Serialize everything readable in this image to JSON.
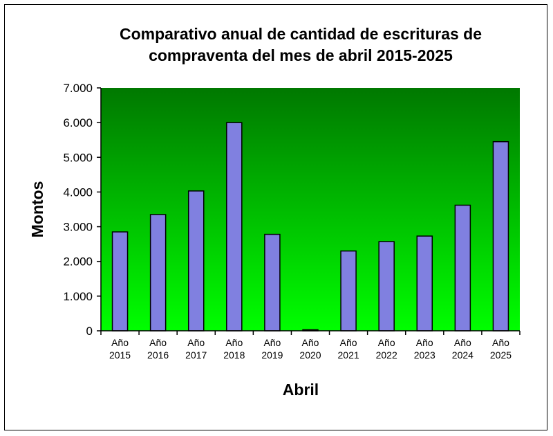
{
  "chart_data": {
    "type": "bar",
    "title_lines": [
      "Comparativo anual de cantidad de escrituras de",
      "compraventa del mes de abril 2015-2025"
    ],
    "xlabel": "Abril",
    "ylabel": "Montos",
    "categories": [
      [
        "Año",
        "2015"
      ],
      [
        "Año",
        "2016"
      ],
      [
        "Año",
        "2017"
      ],
      [
        "Año",
        "2018"
      ],
      [
        "Año",
        "2019"
      ],
      [
        "Año",
        "2020"
      ],
      [
        "Año",
        "2021"
      ],
      [
        "Año",
        "2022"
      ],
      [
        "Año",
        "2023"
      ],
      [
        "Año",
        "2024"
      ],
      [
        "Año",
        "2025"
      ]
    ],
    "values": [
      2850,
      3350,
      4030,
      6000,
      2780,
      30,
      2300,
      2570,
      2730,
      3620,
      5450
    ],
    "ylim": [
      0,
      7000
    ],
    "yticks": [
      0,
      1000,
      2000,
      3000,
      4000,
      5000,
      6000,
      7000
    ],
    "ytick_labels": [
      "0",
      "1.000",
      "2.000",
      "3.000",
      "4.000",
      "5.000",
      "6.000",
      "7.000"
    ],
    "grid": false,
    "legend": "none",
    "colors": {
      "bar_fill": "#8080e0",
      "bar_stroke": "#000000",
      "plot_top": "#007800",
      "plot_bottom": "#00ff00"
    }
  }
}
